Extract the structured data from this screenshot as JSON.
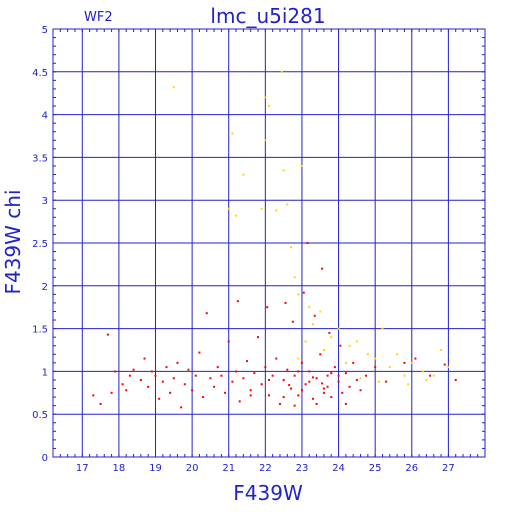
{
  "chart_data": {
    "type": "scatter",
    "title": "lmc_u5i281",
    "subtitle": "WF2",
    "xlabel": "F439W",
    "ylabel": "F439W  chi",
    "xlim": [
      16.2,
      28.0
    ],
    "ylim": [
      0,
      5
    ],
    "x_ticks": [
      "17",
      "18",
      "19",
      "20",
      "21",
      "22",
      "23",
      "24",
      "25",
      "26",
      "27"
    ],
    "y_ticks": [
      "0",
      "0.5",
      "1",
      "1.5",
      "2",
      "2.5",
      "3",
      "3.5",
      "4",
      "4.5",
      "5"
    ],
    "grid": true,
    "colors": {
      "axis": "#2222cc",
      "grid": "#2222cc",
      "primary": "#ff0000",
      "secondary": "#ffd800"
    },
    "series": [
      {
        "color": "#ff0000",
        "points": [
          [
            17.3,
            0.72
          ],
          [
            17.5,
            0.62
          ],
          [
            17.7,
            1.43
          ],
          [
            17.8,
            0.75
          ],
          [
            17.9,
            1.0
          ],
          [
            18.1,
            0.85
          ],
          [
            18.2,
            0.78
          ],
          [
            18.3,
            0.95
          ],
          [
            18.4,
            1.02
          ],
          [
            18.6,
            0.9
          ],
          [
            18.7,
            1.15
          ],
          [
            18.8,
            0.82
          ],
          [
            18.9,
            1.0
          ],
          [
            19.0,
            0.95
          ],
          [
            19.1,
            0.68
          ],
          [
            19.2,
            0.88
          ],
          [
            19.3,
            1.05
          ],
          [
            19.4,
            0.75
          ],
          [
            19.5,
            0.92
          ],
          [
            19.6,
            1.1
          ],
          [
            19.7,
            0.58
          ],
          [
            19.8,
            0.85
          ],
          [
            19.9,
            1.02
          ],
          [
            20.0,
            0.78
          ],
          [
            20.1,
            0.95
          ],
          [
            20.2,
            1.22
          ],
          [
            20.3,
            0.7
          ],
          [
            20.4,
            1.68
          ],
          [
            20.5,
            0.92
          ],
          [
            20.6,
            0.82
          ],
          [
            20.7,
            1.05
          ],
          [
            20.8,
            0.95
          ],
          [
            20.9,
            0.75
          ],
          [
            21.0,
            1.35
          ],
          [
            21.1,
            0.88
          ],
          [
            21.2,
            1.0
          ],
          [
            21.25,
            1.82
          ],
          [
            21.3,
            0.65
          ],
          [
            21.4,
            0.92
          ],
          [
            21.5,
            1.12
          ],
          [
            21.6,
            0.78
          ],
          [
            21.7,
            0.98
          ],
          [
            21.8,
            1.4
          ],
          [
            21.9,
            0.85
          ],
          [
            22.0,
            1.05
          ],
          [
            22.05,
            1.75
          ],
          [
            22.1,
            0.72
          ],
          [
            22.2,
            0.95
          ],
          [
            22.3,
            1.15
          ],
          [
            22.4,
            0.62
          ],
          [
            22.5,
            0.9
          ],
          [
            22.55,
            1.8
          ],
          [
            22.6,
            1.02
          ],
          [
            22.7,
            0.8
          ],
          [
            22.75,
            1.58
          ],
          [
            22.8,
            0.95
          ],
          [
            22.9,
            0.72
          ],
          [
            23.0,
            1.1
          ],
          [
            23.05,
            1.92
          ],
          [
            23.1,
            0.85
          ],
          [
            23.15,
            2.5
          ],
          [
            23.2,
            1.0
          ],
          [
            23.3,
            0.68
          ],
          [
            23.35,
            1.65
          ],
          [
            23.4,
            0.92
          ],
          [
            23.5,
            1.2
          ],
          [
            23.55,
            2.2
          ],
          [
            23.6,
            0.8
          ],
          [
            23.7,
            0.95
          ],
          [
            23.75,
            1.45
          ],
          [
            23.8,
            0.7
          ],
          [
            23.9,
            1.05
          ],
          [
            24.0,
            0.88
          ],
          [
            24.05,
            1.3
          ],
          [
            24.1,
            0.75
          ],
          [
            24.2,
            0.98
          ],
          [
            24.3,
            0.82
          ],
          [
            24.4,
            1.1
          ],
          [
            24.5,
            0.9
          ],
          [
            24.6,
            0.78
          ],
          [
            24.75,
            0.95
          ],
          [
            25.0,
            1.05
          ],
          [
            25.3,
            0.88
          ],
          [
            25.8,
            1.1
          ],
          [
            26.1,
            1.15
          ],
          [
            26.5,
            0.95
          ],
          [
            26.9,
            1.08
          ],
          [
            27.2,
            0.9
          ],
          [
            21.6,
            0.72
          ],
          [
            22.1,
            0.9
          ],
          [
            22.5,
            0.7
          ],
          [
            23.0,
            0.78
          ],
          [
            23.4,
            0.62
          ],
          [
            23.6,
            0.75
          ],
          [
            24.2,
            0.62
          ],
          [
            22.8,
            0.6
          ],
          [
            23.8,
            0.98
          ],
          [
            23.2,
            0.88
          ],
          [
            22.9,
            1.0
          ],
          [
            23.7,
            0.82
          ],
          [
            24.0,
            0.95
          ],
          [
            23.3,
            0.93
          ],
          [
            23.55,
            0.86
          ],
          [
            22.65,
            0.84
          ]
        ]
      },
      {
        "color": "#ffd800",
        "points": [
          [
            19.5,
            4.32
          ],
          [
            21.0,
            2.9
          ],
          [
            21.1,
            3.78
          ],
          [
            21.2,
            2.82
          ],
          [
            21.4,
            3.3
          ],
          [
            21.9,
            2.9
          ],
          [
            22.0,
            4.2
          ],
          [
            22.1,
            4.1
          ],
          [
            22.0,
            3.7
          ],
          [
            22.3,
            2.88
          ],
          [
            22.45,
            4.5
          ],
          [
            22.5,
            3.35
          ],
          [
            22.6,
            2.95
          ],
          [
            22.7,
            2.45
          ],
          [
            22.8,
            2.1
          ],
          [
            22.9,
            1.9
          ],
          [
            23.0,
            3.4
          ],
          [
            23.2,
            1.75
          ],
          [
            23.3,
            1.55
          ],
          [
            23.5,
            1.7
          ],
          [
            23.8,
            1.4
          ],
          [
            24.0,
            1.5
          ],
          [
            24.3,
            1.3
          ],
          [
            24.5,
            1.35
          ],
          [
            24.8,
            1.2
          ],
          [
            25.0,
            1.15
          ],
          [
            25.2,
            1.5
          ],
          [
            25.4,
            1.05
          ],
          [
            25.6,
            1.2
          ],
          [
            25.8,
            0.95
          ],
          [
            26.0,
            1.1
          ],
          [
            26.3,
            1.0
          ],
          [
            26.6,
            0.95
          ],
          [
            26.8,
            1.25
          ],
          [
            27.0,
            1.05
          ],
          [
            24.6,
            0.92
          ],
          [
            25.1,
            0.88
          ],
          [
            25.9,
            0.85
          ],
          [
            26.4,
            0.9
          ],
          [
            24.2,
            1.1
          ],
          [
            23.6,
            1.25
          ],
          [
            22.9,
            1.15
          ],
          [
            23.1,
            1.35
          ]
        ]
      }
    ]
  }
}
